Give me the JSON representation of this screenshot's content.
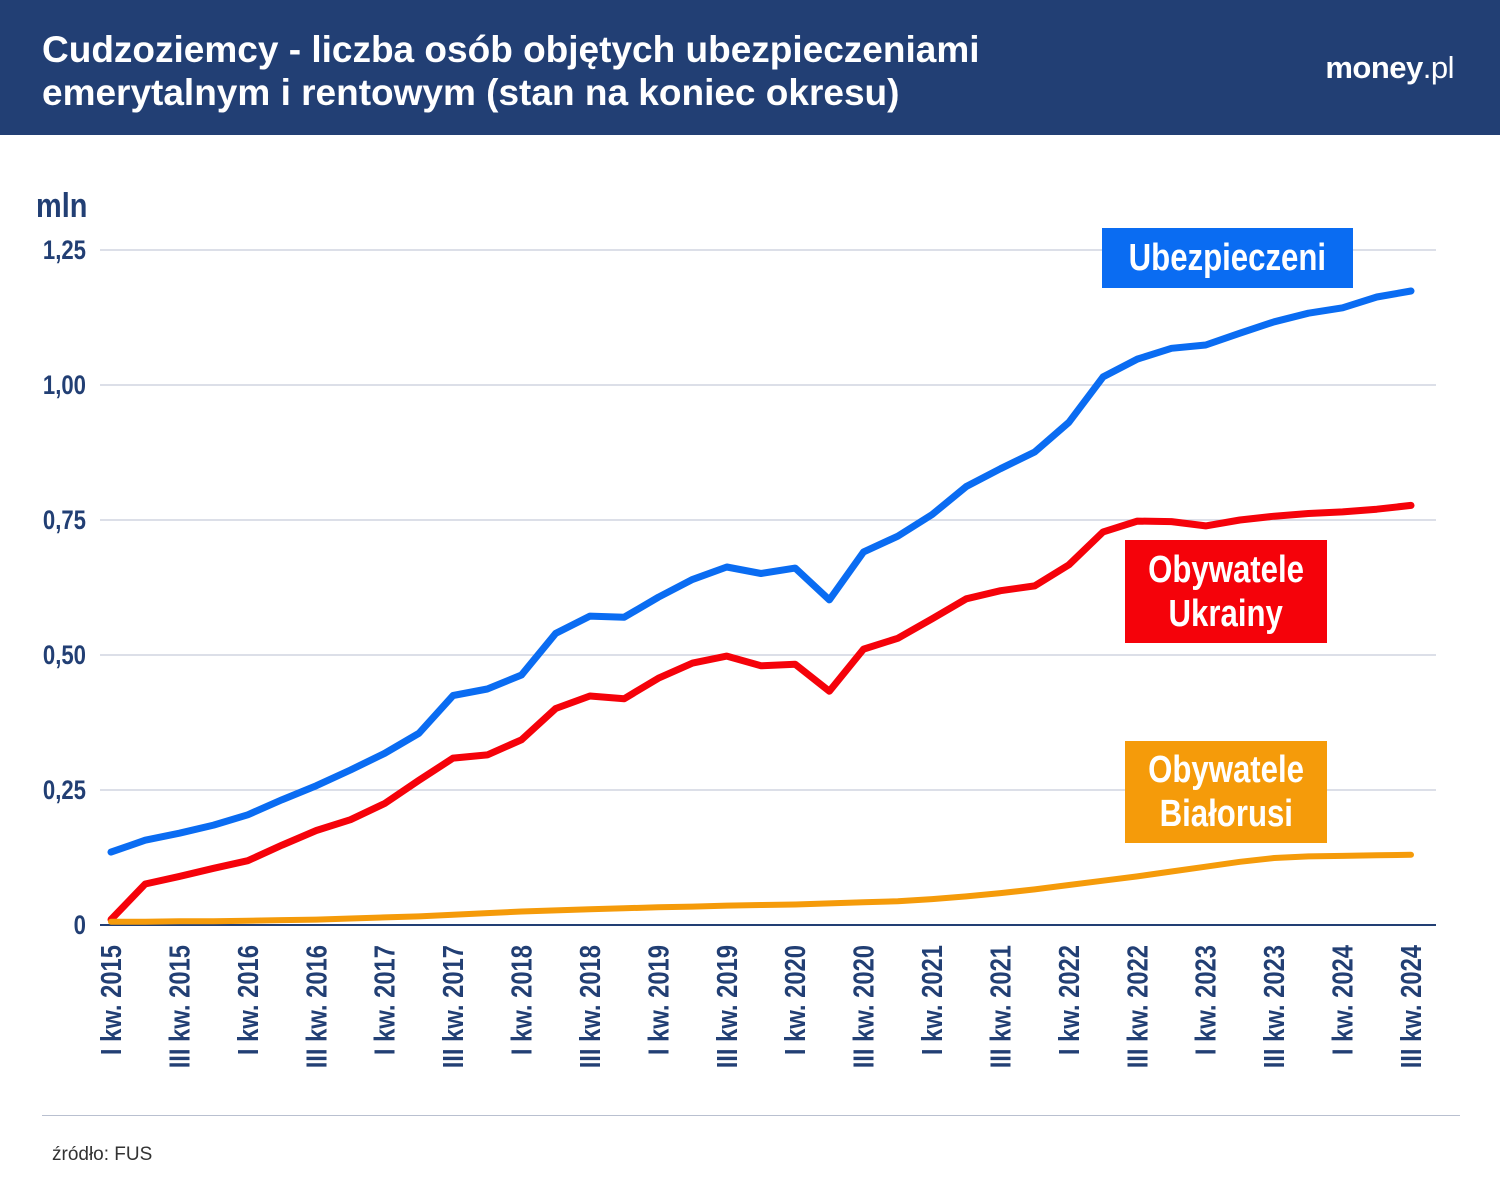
{
  "header": {
    "title": "Cudzoziemcy - liczba osób objętych ubezpieczeniami emerytalnym i rentowym (stan na koniec okresu)",
    "logo_main": "money",
    "logo_suffix": ".pl"
  },
  "source": "źródło: FUS",
  "colors": {
    "header": "#223f74",
    "ubezpieczeni": "#0a6cf2",
    "ukraina": "#f5020a",
    "bialorus": "#f59b0a",
    "axis_text": "#223f74",
    "grid": "#c8ccda"
  },
  "chart_data": {
    "type": "line",
    "title": "Cudzoziemcy - liczba osób objętych ubezpieczeniami emerytalnym i rentowym (stan na koniec okresu)",
    "ylabel": "mln",
    "xlabel": "",
    "ylim": [
      0,
      1.25
    ],
    "yticks": [
      0,
      0.25,
      0.5,
      0.75,
      1.0,
      1.25
    ],
    "ytick_labels": [
      "0",
      "0,25",
      "0,50",
      "0,75",
      "1,00",
      "1,25"
    ],
    "grid": true,
    "categories": [
      "I kw. 2015",
      "II kw. 2015",
      "III kw. 2015",
      "IV kw. 2015",
      "I kw. 2016",
      "II kw. 2016",
      "III kw. 2016",
      "IV kw. 2016",
      "I kw. 2017",
      "II kw. 2017",
      "III kw. 2017",
      "IV kw. 2017",
      "I kw. 2018",
      "II kw. 2018",
      "III kw. 2018",
      "IV kw. 2018",
      "I kw. 2019",
      "II kw. 2019",
      "III kw. 2019",
      "IV kw. 2019",
      "I kw. 2020",
      "II kw. 2020",
      "III kw. 2020",
      "IV kw. 2020",
      "I kw. 2021",
      "II kw. 2021",
      "III kw. 2021",
      "IV kw. 2021",
      "I kw. 2022",
      "II kw. 2022",
      "III kw. 2022",
      "IV kw. 2022",
      "I kw. 2023",
      "II kw. 2023",
      "III kw. 2023",
      "IV kw. 2023",
      "I kw. 2024",
      "II kw. 2024",
      "III kw. 2024"
    ],
    "shown_tick_every": 2,
    "series": [
      {
        "name": "Ubezpieczeni",
        "legend_lines": [
          "Ubezpieczeni"
        ],
        "color": "#0a6cf2",
        "values": [
          0.135,
          0.157,
          0.17,
          0.185,
          0.204,
          0.232,
          0.258,
          0.287,
          0.318,
          0.355,
          0.425,
          0.437,
          0.463,
          0.54,
          0.572,
          0.57,
          0.607,
          0.64,
          0.663,
          0.651,
          0.661,
          0.602,
          0.691,
          0.72,
          0.76,
          0.812,
          0.845,
          0.876,
          0.931,
          1.015,
          1.048,
          1.068,
          1.074,
          1.096,
          1.117,
          1.133,
          1.143,
          1.163,
          1.174
        ]
      },
      {
        "name": "Obywatele Ukrainy",
        "legend_lines": [
          "Obywatele",
          "Ukrainy"
        ],
        "color": "#f5020a",
        "values": [
          0.01,
          0.076,
          0.09,
          0.105,
          0.119,
          0.148,
          0.175,
          0.195,
          0.225,
          0.268,
          0.309,
          0.315,
          0.343,
          0.401,
          0.424,
          0.419,
          0.457,
          0.485,
          0.498,
          0.48,
          0.483,
          0.433,
          0.511,
          0.531,
          0.567,
          0.604,
          0.619,
          0.628,
          0.667,
          0.728,
          0.748,
          0.747,
          0.739,
          0.75,
          0.757,
          0.762,
          0.765,
          0.77,
          0.777
        ]
      },
      {
        "name": "Obywatele Białorusi",
        "legend_lines": [
          "Obywatele",
          "Białorusi"
        ],
        "color": "#f59b0a",
        "values": [
          0.006,
          0.006,
          0.007,
          0.007,
          0.008,
          0.009,
          0.01,
          0.012,
          0.014,
          0.016,
          0.019,
          0.022,
          0.025,
          0.027,
          0.029,
          0.031,
          0.033,
          0.034,
          0.036,
          0.037,
          0.038,
          0.04,
          0.042,
          0.044,
          0.048,
          0.053,
          0.059,
          0.066,
          0.074,
          0.082,
          0.09,
          0.099,
          0.108,
          0.117,
          0.124,
          0.127,
          0.128,
          0.129,
          0.13
        ]
      }
    ]
  }
}
